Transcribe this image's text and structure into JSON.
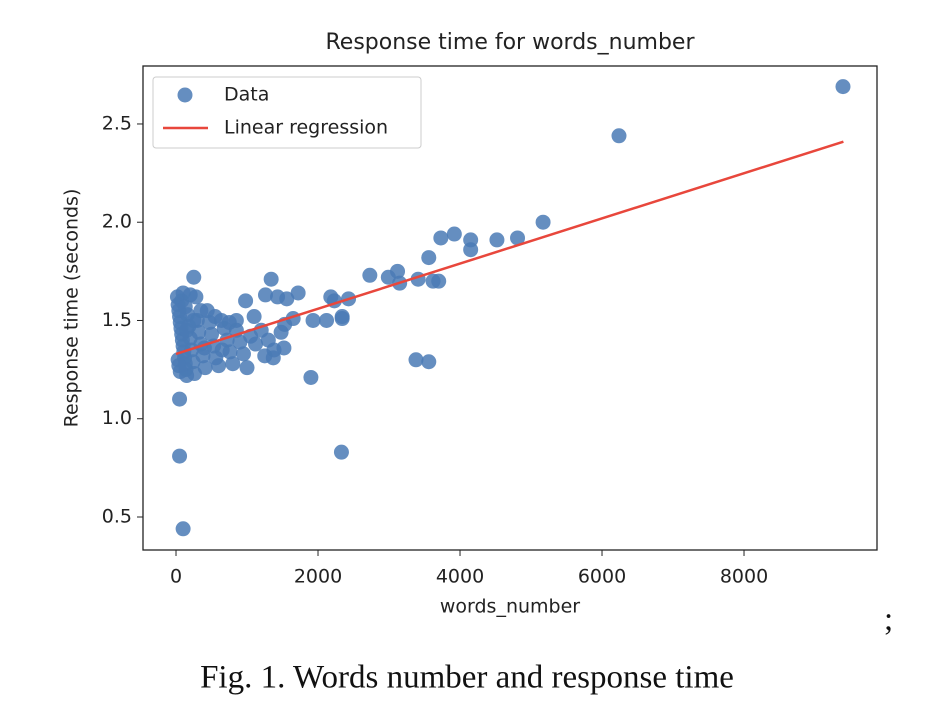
{
  "chart_data": {
    "type": "scatter",
    "title": "Response time for words_number",
    "xlabel": "words_number",
    "ylabel": "Response time (seconds)",
    "xlim": [
      -465,
      9873
    ],
    "ylim": [
      0.332,
      2.795
    ],
    "xticks": [
      0,
      2000,
      4000,
      6000,
      8000
    ],
    "yticks": [
      0.5,
      {
        "value": 1,
        "label": "1.0"
      },
      1.5,
      {
        "value": 2,
        "label": "2.0"
      },
      2.5
    ],
    "grid": false,
    "legend": "upper left",
    "series": [
      {
        "name": "Data",
        "type": "scatter",
        "color": "#4a7ab5",
        "x": [
          9394,
          6239,
          5170,
          4810,
          4520,
          4150,
          4150,
          3920,
          3730,
          3560,
          3700,
          3620,
          3410,
          3380,
          3560,
          3120,
          2990,
          3150,
          2730,
          2430,
          2180,
          2230,
          2340,
          2340,
          2120,
          1930,
          1900,
          2330,
          1720,
          1560,
          1430,
          1340,
          1260,
          1650,
          1530,
          1480,
          1520,
          1380,
          1370,
          980,
          1100,
          850,
          50,
          50,
          100,
          250,
          20,
          30,
          40,
          50,
          60,
          70,
          80,
          90,
          100,
          110,
          120,
          130,
          140,
          150,
          30,
          40,
          60,
          80,
          100,
          130,
          160,
          180,
          200,
          220,
          240,
          260,
          280,
          300,
          320,
          350,
          380,
          410,
          440,
          470,
          500,
          530,
          560,
          600,
          640,
          680,
          720,
          760,
          800,
          850,
          900,
          950,
          1000,
          1050,
          1120,
          1200,
          1250,
          1300,
          200,
          350,
          550,
          750,
          150,
          250,
          400,
          650
        ],
        "values": [
          2.69,
          2.44,
          2.0,
          1.92,
          1.91,
          1.91,
          1.86,
          1.94,
          1.92,
          1.82,
          1.7,
          1.7,
          1.71,
          1.3,
          1.29,
          1.75,
          1.72,
          1.69,
          1.73,
          1.61,
          1.62,
          1.6,
          1.52,
          1.51,
          1.5,
          1.5,
          1.21,
          0.83,
          1.64,
          1.61,
          1.62,
          1.71,
          1.63,
          1.51,
          1.48,
          1.44,
          1.36,
          1.35,
          1.31,
          1.6,
          1.52,
          1.5,
          1.1,
          0.81,
          0.44,
          1.72,
          1.62,
          1.58,
          1.55,
          1.52,
          1.49,
          1.46,
          1.43,
          1.4,
          1.37,
          1.34,
          1.31,
          1.28,
          1.25,
          1.22,
          1.3,
          1.27,
          1.24,
          1.6,
          1.64,
          1.57,
          1.53,
          1.47,
          1.41,
          1.35,
          1.29,
          1.23,
          1.62,
          1.5,
          1.44,
          1.38,
          1.32,
          1.26,
          1.55,
          1.49,
          1.43,
          1.37,
          1.31,
          1.27,
          1.5,
          1.46,
          1.4,
          1.34,
          1.28,
          1.45,
          1.39,
          1.33,
          1.26,
          1.42,
          1.38,
          1.45,
          1.32,
          1.4,
          1.63,
          1.55,
          1.52,
          1.49,
          1.45,
          1.5,
          1.36,
          1.35
        ]
      },
      {
        "name": "Linear regression",
        "type": "line",
        "color": "#e8473c",
        "x": [
          0,
          9400
        ],
        "values": [
          1.33,
          2.41
        ]
      }
    ]
  },
  "caption": "Fig. 1. Words number and response time",
  "punctuation": ";"
}
